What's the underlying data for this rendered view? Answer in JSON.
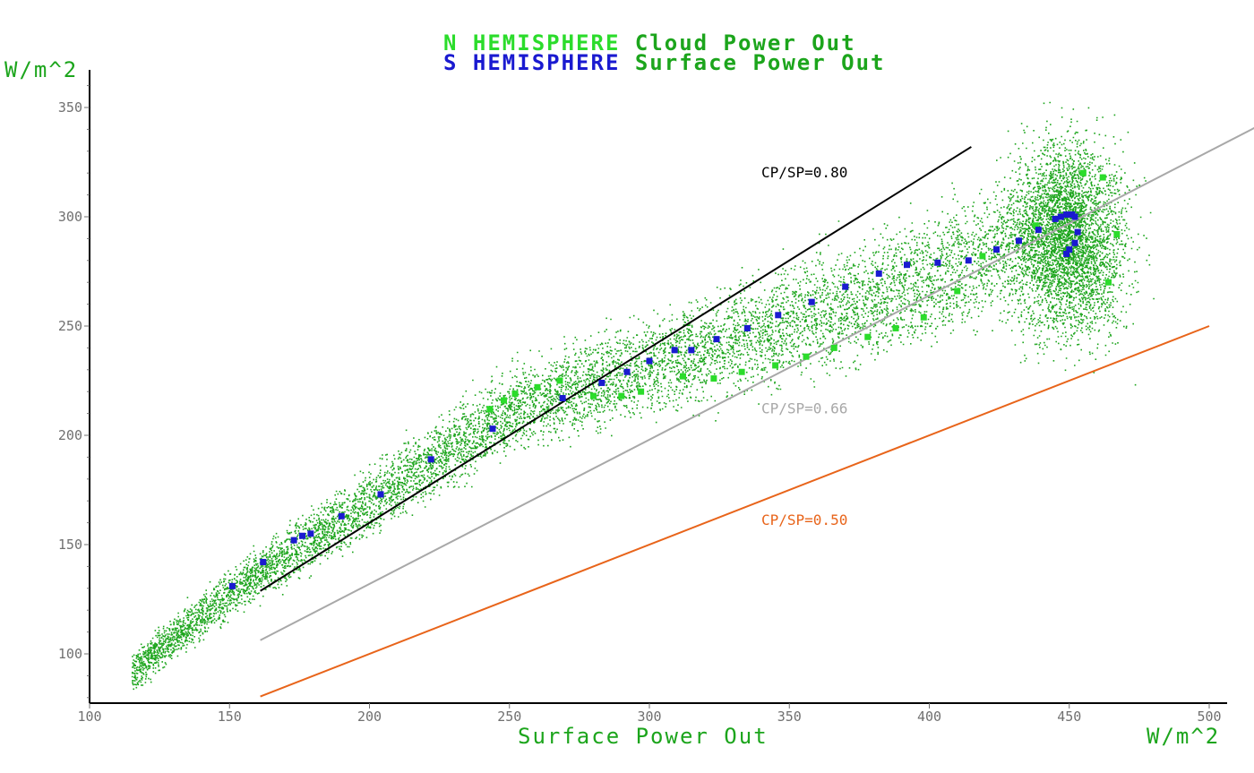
{
  "chart_data": {
    "type": "scatter",
    "title_lines": [
      {
        "prefix": "N HEMISPHERE",
        "prefix_color": "#2bdc2b",
        "rest": "Cloud Power Out",
        "rest_color": "#1ca51c"
      },
      {
        "prefix": "S HEMISPHERE",
        "prefix_color": "#1a1ad0",
        "rest": "Surface Power Out",
        "rest_color": "#1ca51c"
      }
    ],
    "xlabel": "Surface Power Out",
    "ylabel": "",
    "x_unit": "W/m^2",
    "y_unit": "W/m^2",
    "xlim": [
      100,
      505
    ],
    "ylim": [
      78,
      365
    ],
    "x_ticks": [
      100,
      150,
      200,
      250,
      300,
      350,
      400,
      450,
      500
    ],
    "y_ticks": [
      100,
      150,
      200,
      250,
      300,
      350
    ],
    "grid": false,
    "legend": "none",
    "reference_lines": [
      {
        "label": "CP/SP=0.80",
        "ratio": 0.8,
        "color": "#000000",
        "x_range": [
          161,
          415
        ],
        "label_x": 340,
        "label_y": 318
      },
      {
        "label": "CP/SP=0.66",
        "ratio": 0.66,
        "color": "#a8a8a8",
        "x_range": [
          161,
          520
        ],
        "label_x": 340,
        "label_y": 210
      },
      {
        "label": "CP/SP=0.50",
        "ratio": 0.5,
        "color": "#e8641a",
        "x_range": [
          161,
          500
        ],
        "label_x": 340,
        "label_y": 159
      }
    ],
    "scatter_cloud": {
      "color": "#1ca51c",
      "note_centerline": [
        [
          115,
          92
        ],
        [
          150,
          128
        ],
        [
          200,
          170
        ],
        [
          250,
          212
        ],
        [
          300,
          232
        ],
        [
          350,
          252
        ],
        [
          400,
          272
        ],
        [
          440,
          295
        ],
        [
          455,
          300
        ]
      ]
    },
    "series": [
      {
        "name": "N HEMISPHERE",
        "color": "#2bdc2b",
        "marker": "square",
        "points": [
          [
            243,
            212
          ],
          [
            248,
            216
          ],
          [
            252,
            219
          ],
          [
            260,
            222
          ],
          [
            268,
            225
          ],
          [
            280,
            218
          ],
          [
            290,
            218
          ],
          [
            297,
            220
          ],
          [
            312,
            227
          ],
          [
            323,
            226
          ],
          [
            333,
            229
          ],
          [
            345,
            232
          ],
          [
            356,
            236
          ],
          [
            366,
            240
          ],
          [
            378,
            245
          ],
          [
            388,
            249
          ],
          [
            398,
            254
          ],
          [
            410,
            266
          ],
          [
            419,
            282
          ],
          [
            438,
            296
          ],
          [
            455,
            320
          ],
          [
            462,
            318
          ],
          [
            464,
            270
          ],
          [
            467,
            292
          ]
        ]
      },
      {
        "name": "S HEMISPHERE",
        "color": "#1a1ad0",
        "marker": "square",
        "points": [
          [
            151,
            131
          ],
          [
            162,
            142
          ],
          [
            173,
            152
          ],
          [
            176,
            154
          ],
          [
            179,
            155
          ],
          [
            190,
            163
          ],
          [
            204,
            173
          ],
          [
            222,
            189
          ],
          [
            244,
            203
          ],
          [
            269,
            217
          ],
          [
            283,
            224
          ],
          [
            292,
            229
          ],
          [
            300,
            234
          ],
          [
            309,
            239
          ],
          [
            315,
            239
          ],
          [
            324,
            244
          ],
          [
            335,
            249
          ],
          [
            346,
            255
          ],
          [
            358,
            261
          ],
          [
            370,
            268
          ],
          [
            382,
            274
          ],
          [
            392,
            278
          ],
          [
            403,
            279
          ],
          [
            414,
            280
          ],
          [
            424,
            285
          ],
          [
            432,
            289
          ],
          [
            439,
            294
          ],
          [
            445,
            299
          ],
          [
            447,
            300
          ],
          [
            449,
            301
          ],
          [
            451,
            301
          ],
          [
            452,
            300
          ],
          [
            453,
            293
          ],
          [
            452,
            288
          ],
          [
            450,
            285
          ],
          [
            449,
            283
          ]
        ]
      }
    ]
  }
}
